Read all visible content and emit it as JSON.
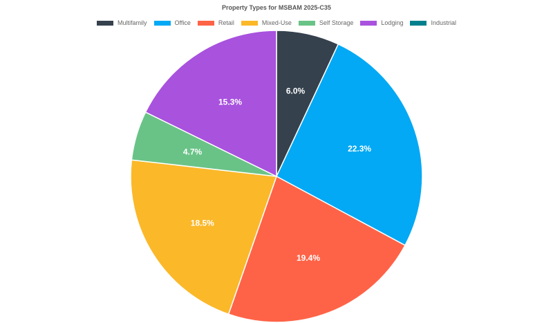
{
  "chart_data": {
    "type": "pie",
    "title": "Property Types for MSBAM 2025-C35",
    "legend_position": "top",
    "slices": [
      {
        "name": "Multifamily",
        "value": 6.0,
        "label": "6.0%",
        "color": "#36414e"
      },
      {
        "name": "Office",
        "value": 22.3,
        "label": "22.3%",
        "color": "#03a9f4"
      },
      {
        "name": "Retail",
        "value": 19.4,
        "label": "19.4%",
        "color": "#ff6347"
      },
      {
        "name": "Mixed-Use",
        "value": 18.5,
        "label": "18.5%",
        "color": "#fbb829"
      },
      {
        "name": "Self Storage",
        "value": 4.7,
        "label": "4.7%",
        "color": "#69c387"
      },
      {
        "name": "Lodging",
        "value": 15.3,
        "label": "15.3%",
        "color": "#a852de"
      },
      {
        "name": "Industrial",
        "value": 0,
        "label": "",
        "color": "#00808d"
      }
    ]
  }
}
